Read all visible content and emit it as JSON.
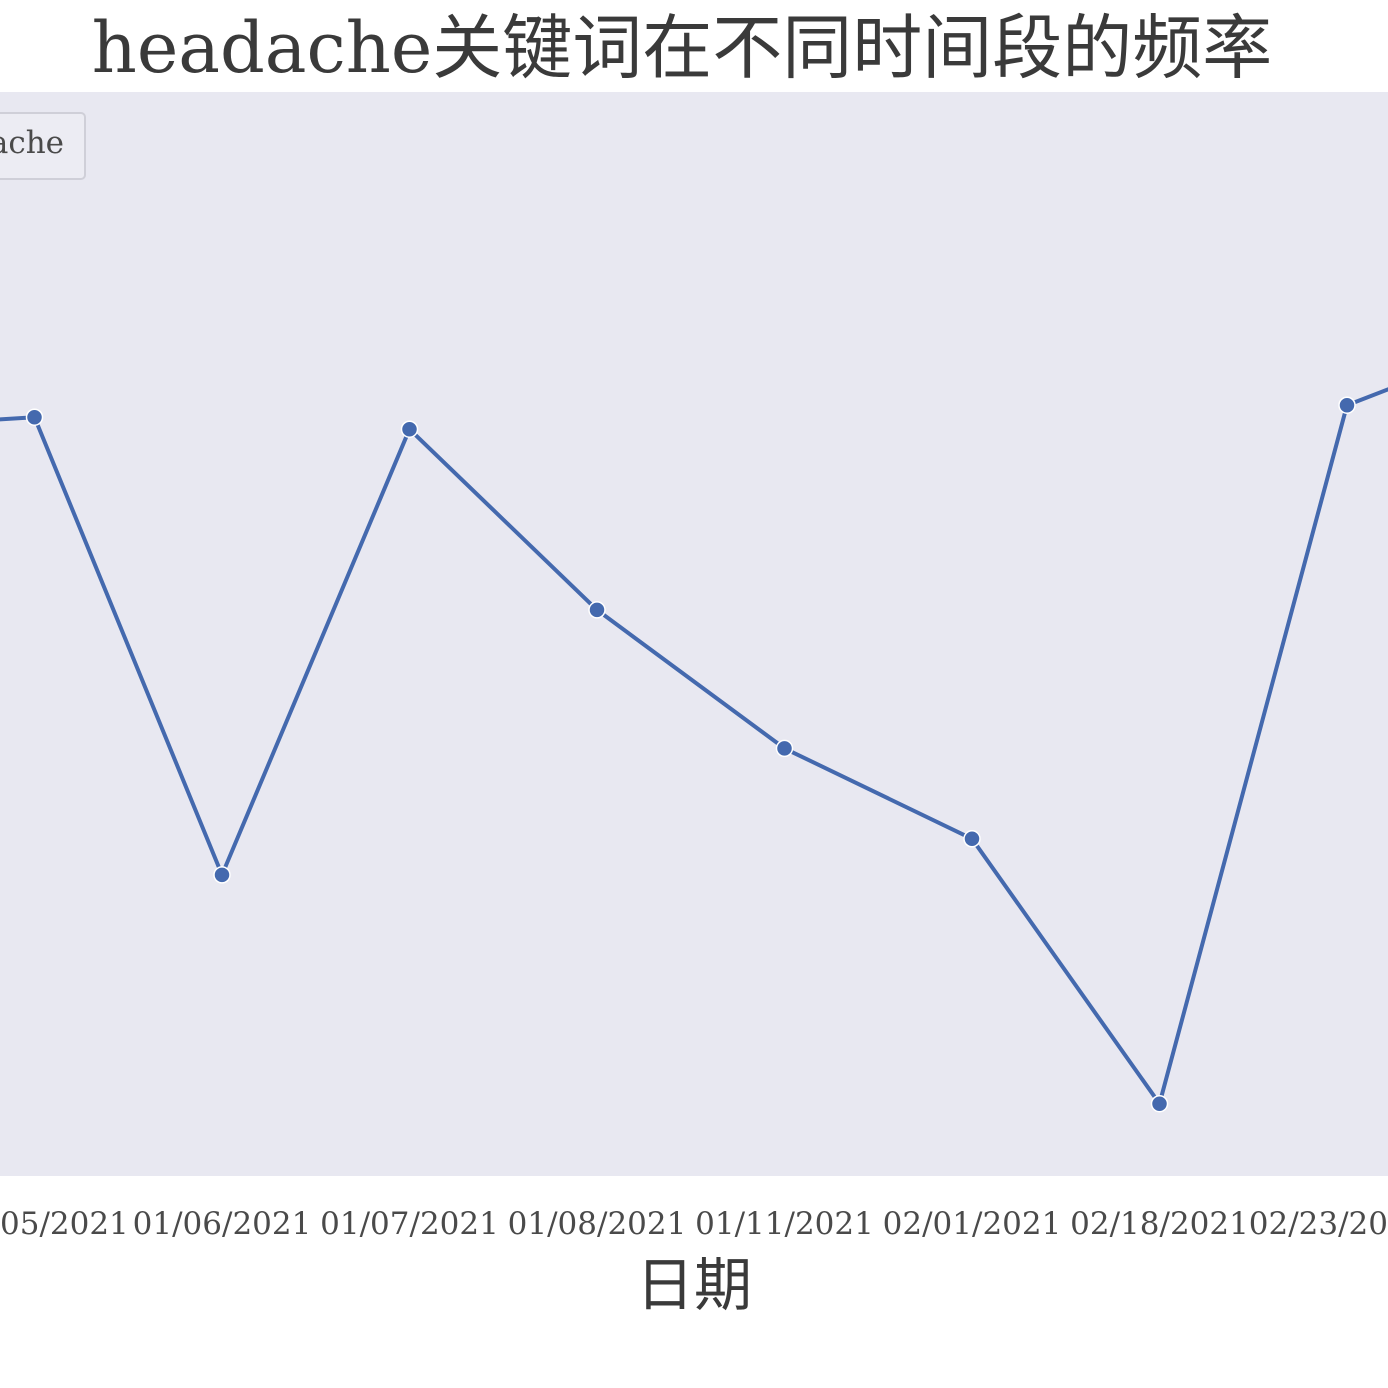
{
  "colors": {
    "plot_background": "#e8e8f1",
    "series": "#4469ae",
    "legend_border": "#cfcfd8",
    "legend_fill": "#ececf3"
  },
  "chart_data": {
    "type": "line",
    "title": "headache关键词在不同时间段的频率",
    "xlabel": "日期",
    "ylabel": "",
    "grid": false,
    "legend_position": "top-left",
    "legend_text": "ache",
    "categories": [
      "",
      "05/2021",
      "01/06/2021",
      "01/07/2021",
      "01/08/2021",
      "01/11/2021",
      "02/01/2021",
      "02/18/2021",
      "02/23/20",
      ""
    ],
    "series": [
      {
        "name": "ache",
        "values": [
          6.2,
          6.3,
          2.5,
          6.2,
          4.7,
          3.55,
          2.8,
          0.6,
          6.4,
          7.0
        ]
      }
    ],
    "ylim": [
      0,
      9
    ]
  }
}
